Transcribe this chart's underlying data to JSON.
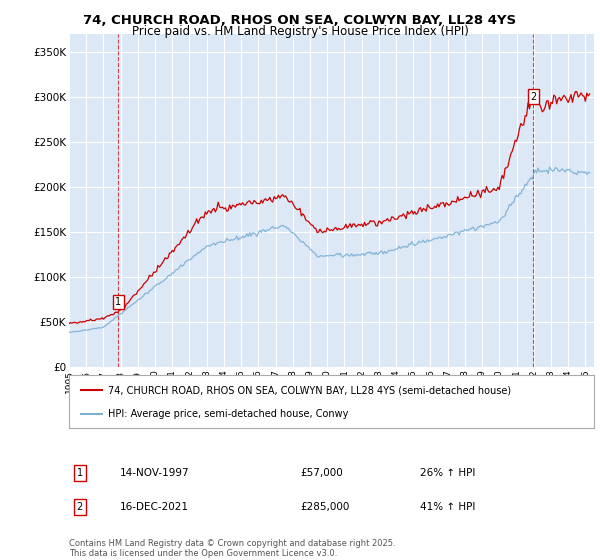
{
  "title_line1": "74, CHURCH ROAD, RHOS ON SEA, COLWYN BAY, LL28 4YS",
  "title_line2": "Price paid vs. HM Land Registry's House Price Index (HPI)",
  "ylabel_ticks": [
    "£0",
    "£50K",
    "£100K",
    "£150K",
    "£200K",
    "£250K",
    "£300K",
    "£350K"
  ],
  "ylim": [
    0,
    370000
  ],
  "yticks": [
    0,
    50000,
    100000,
    150000,
    200000,
    250000,
    300000,
    350000
  ],
  "xlim_start": 1995.0,
  "xlim_end": 2025.5,
  "bg_color": "#ffffff",
  "plot_bg": "#dce8f5",
  "grid_color": "#ffffff",
  "red_color": "#cc0000",
  "blue_color": "#7bafd4",
  "legend_label_red": "74, CHURCH ROAD, RHOS ON SEA, COLWYN BAY, LL28 4YS (semi-detached house)",
  "legend_label_blue": "HPI: Average price, semi-detached house, Conwy",
  "marker1_x": 1997.87,
  "marker1_y": 57000,
  "marker2_x": 2021.96,
  "marker2_y": 285000,
  "annotation1_date": "14-NOV-1997",
  "annotation1_price": "£57,000",
  "annotation1_hpi": "26% ↑ HPI",
  "annotation2_date": "16-DEC-2021",
  "annotation2_price": "£285,000",
  "annotation2_hpi": "41% ↑ HPI",
  "footer": "Contains HM Land Registry data © Crown copyright and database right 2025.\nThis data is licensed under the Open Government Licence v3.0."
}
